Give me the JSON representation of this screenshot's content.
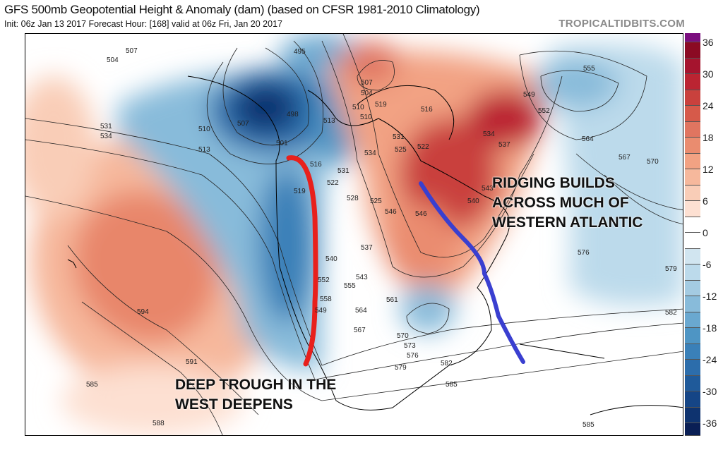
{
  "header": {
    "title": "GFS 500mb Geopotential Height & Anomaly (dam) (based on CFSR 1981-2010 Climatology)",
    "subtitle": "Init: 06z Jan 13 2017   Forecast Hour: [168]   valid at 06z Fri, Jan 20 2017",
    "brand": "TROPICALTIDBITS.COM"
  },
  "colorbar": {
    "labels": [
      "36",
      "30",
      "24",
      "18",
      "12",
      "6",
      "0",
      "-6",
      "-12",
      "-18",
      "-24",
      "-30",
      "-36"
    ],
    "colors": [
      "#7b0f7f",
      "#8b0a23",
      "#a5142e",
      "#bb2432",
      "#c9413d",
      "#d65a4a",
      "#e07560",
      "#ea8c6f",
      "#f2a283",
      "#f6b89c",
      "#f9cdb7",
      "#fde0d2",
      "#ffffff",
      "#ffffff",
      "#d1e5f0",
      "#bcdaeb",
      "#a4cbe2",
      "#88bbda",
      "#6aa8d0",
      "#4e95c4",
      "#3a80b8",
      "#2c6dab",
      "#1f5a9a",
      "#154586",
      "#0e336f",
      "#0a1f55"
    ]
  },
  "annotations": {
    "west_line1": "DEEP TROUGH IN THE",
    "west_line2": "WEST DEEPENS",
    "east_line1": "RIDGING BUILDS",
    "east_line2": "ACROSS MUCH OF",
    "east_line3": "WESTERN ATLANTIC"
  },
  "annotation_colors": {
    "trough_line": "#e8201c",
    "ridge_line": "#3a3fd0"
  },
  "contour_labels": [
    "507",
    "504",
    "495",
    "498",
    "501",
    "507",
    "510",
    "513",
    "531",
    "534",
    "516",
    "519",
    "522",
    "525",
    "528",
    "531",
    "534",
    "537",
    "540",
    "543",
    "546",
    "549",
    "552",
    "555",
    "558",
    "564",
    "567",
    "561",
    "570",
    "573",
    "576",
    "579",
    "582",
    "585",
    "591",
    "594",
    "585",
    "588",
    "513",
    "516",
    "522",
    "525",
    "531",
    "534",
    "537",
    "540",
    "543",
    "546",
    "549",
    "552",
    "555",
    "564",
    "567",
    "570",
    "576",
    "579",
    "582",
    "585",
    "510",
    "519",
    "507",
    "504",
    "510"
  ]
}
